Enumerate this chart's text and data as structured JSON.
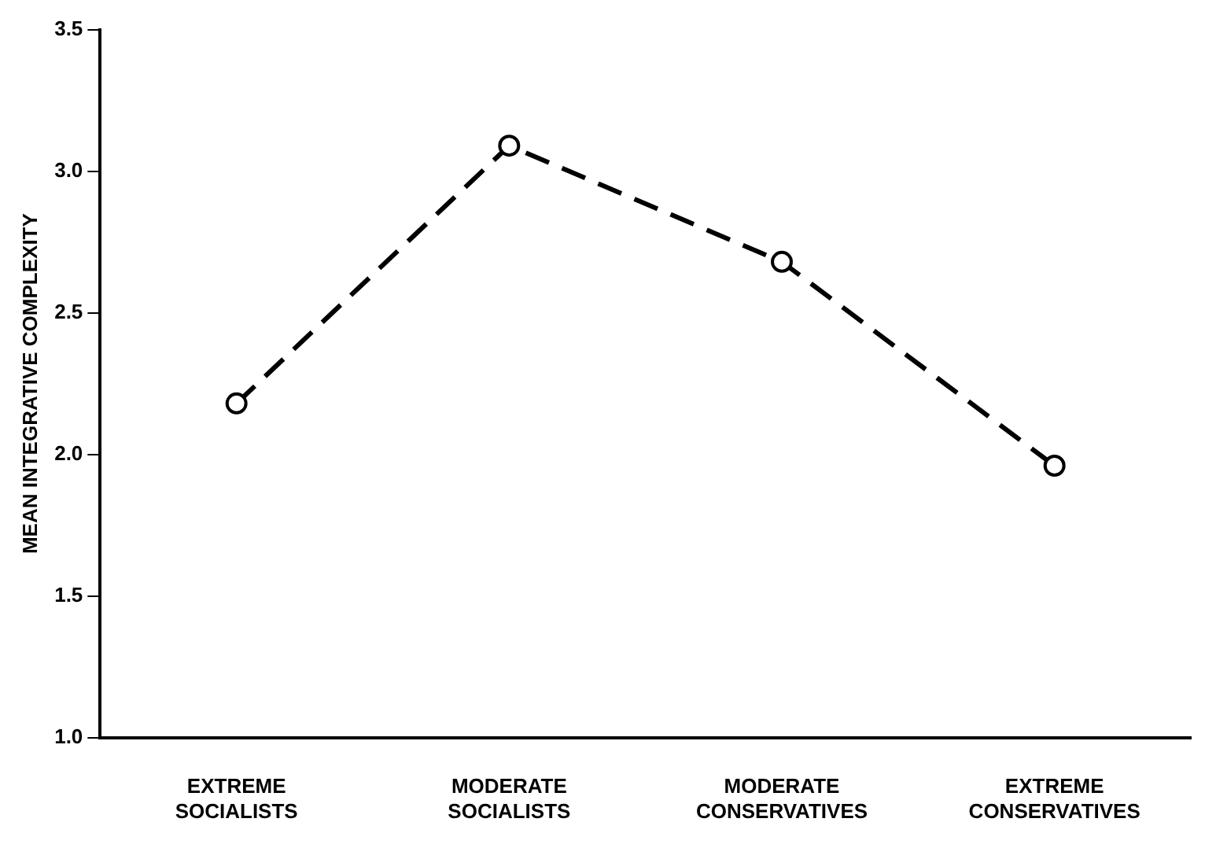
{
  "chart_data": {
    "type": "line",
    "ylabel": "MEAN INTEGRATIVE COMPLEXITY",
    "categories": [
      "EXTREME SOCIALISTS",
      "MODERATE SOCIALISTS",
      "MODERATE CONSERVATIVES",
      "EXTREME CONSERVATIVES"
    ],
    "series": [
      {
        "color": "#000000",
        "values": [
          2.18,
          3.09,
          2.68,
          1.96
        ]
      }
    ],
    "ylim": [
      1.0,
      3.5
    ],
    "yticks": [
      {
        "value": 1.0,
        "label": "1.0"
      },
      {
        "value": 1.5,
        "label": "1.5"
      },
      {
        "value": 2.0,
        "label": "2.0"
      },
      {
        "value": 2.5,
        "label": "2.5"
      },
      {
        "value": 3.0,
        "label": "3.0"
      },
      {
        "value": 3.5,
        "label": "3.5"
      }
    ],
    "grid": false,
    "legend": false,
    "marker": "circle",
    "line_style": "dashed"
  }
}
